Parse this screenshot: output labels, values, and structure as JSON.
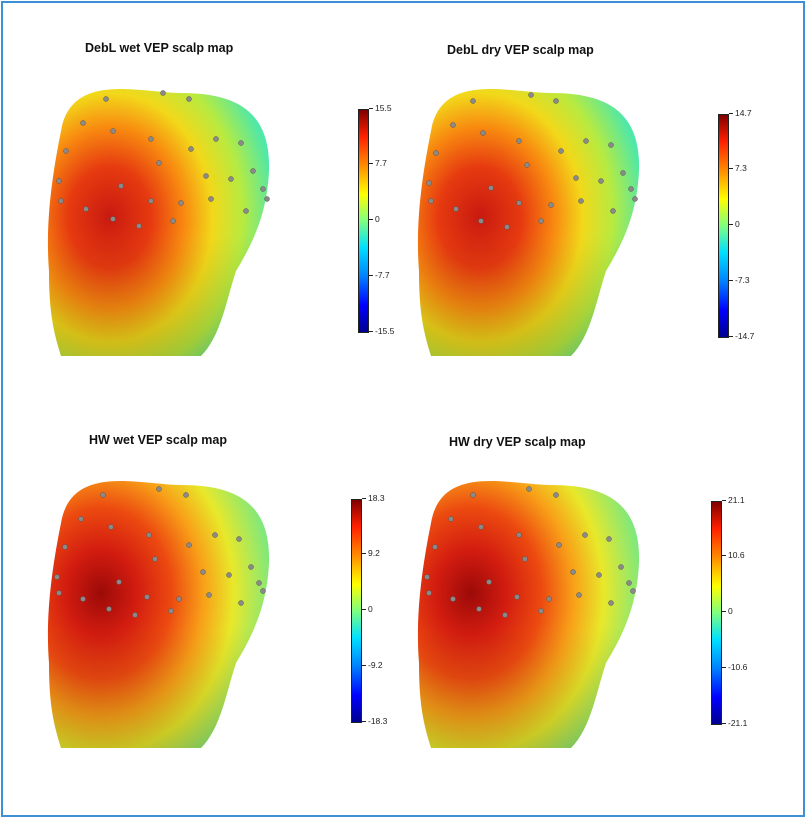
{
  "panels": [
    {
      "title": "DebL wet VEP scalp map",
      "ticks": [
        "15.5",
        "7.7",
        "0",
        "-7.7",
        "-15.5"
      ],
      "hot_color": "#c81a10"
    },
    {
      "title": "DebL dry VEP scalp map",
      "ticks": [
        "14.7",
        "7.3",
        "0",
        "-7.3",
        "-14.7"
      ],
      "hot_color": "#c81a10"
    },
    {
      "title": "HW wet VEP scalp map",
      "ticks": [
        "18.3",
        "9.2",
        "0",
        "-9.2",
        "-18.3"
      ],
      "hot_color": "#9c0a08"
    },
    {
      "title": "HW dry VEP scalp map",
      "ticks": [
        "21.1",
        "10.6",
        "0",
        "-10.6",
        "-21.1"
      ],
      "hot_color": "#9c0a08"
    }
  ],
  "colormap": [
    "#7f0000",
    "#ff2000",
    "#ff8c00",
    "#ffff00",
    "#7fff7f",
    "#00e0ff",
    "#0080ff",
    "#0000ff",
    "#00008f"
  ],
  "frame_color": "#3d8fd6"
}
